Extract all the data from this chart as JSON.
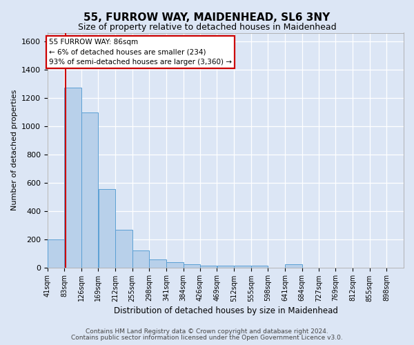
{
  "title1": "55, FURROW WAY, MAIDENHEAD, SL6 3NY",
  "title2": "Size of property relative to detached houses in Maidenhead",
  "xlabel": "Distribution of detached houses by size in Maidenhead",
  "ylabel": "Number of detached properties",
  "bin_labels": [
    "41sqm",
    "83sqm",
    "126sqm",
    "169sqm",
    "212sqm",
    "255sqm",
    "298sqm",
    "341sqm",
    "384sqm",
    "426sqm",
    "469sqm",
    "512sqm",
    "555sqm",
    "598sqm",
    "641sqm",
    "684sqm",
    "727sqm",
    "769sqm",
    "812sqm",
    "855sqm",
    "898sqm"
  ],
  "bar_heights": [
    197,
    1272,
    1097,
    555,
    265,
    120,
    58,
    35,
    22,
    14,
    14,
    14,
    14,
    0,
    22,
    0,
    0,
    0,
    0,
    0,
    0
  ],
  "bar_color": "#b8d0ea",
  "bar_edge_color": "#5a9fd4",
  "bg_color": "#dce6f5",
  "grid_color": "#ffffff",
  "vline_sqm": 86,
  "vline_color": "#cc0000",
  "annotation_line1": "55 FURROW WAY: 86sqm",
  "annotation_line2": "← 6% of detached houses are smaller (234)",
  "annotation_line3": "93% of semi-detached houses are larger (3,360) →",
  "annotation_box_color": "#cc0000",
  "ylim": [
    0,
    1660
  ],
  "yticks": [
    0,
    200,
    400,
    600,
    800,
    1000,
    1200,
    1400,
    1600
  ],
  "bin_edges": [
    41,
    83,
    126,
    169,
    212,
    255,
    298,
    341,
    384,
    426,
    469,
    512,
    555,
    598,
    641,
    684,
    727,
    769,
    812,
    855,
    898,
    941
  ],
  "footer1": "Contains HM Land Registry data © Crown copyright and database right 2024.",
  "footer2": "Contains public sector information licensed under the Open Government Licence v3.0.",
  "title1_fontsize": 11,
  "title2_fontsize": 9,
  "xlabel_fontsize": 8.5,
  "ylabel_fontsize": 8,
  "tick_fontsize": 7,
  "ytick_fontsize": 8,
  "annot_fontsize": 7.5,
  "footer_fontsize": 6.5
}
